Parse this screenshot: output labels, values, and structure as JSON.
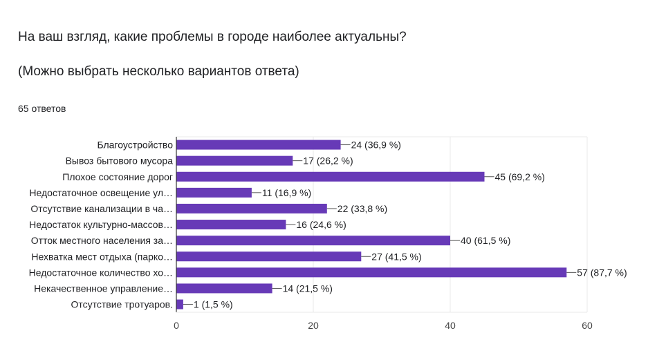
{
  "question": {
    "title": "На ваш взгляд, какие проблемы в городе наиболее актуальны?",
    "subtitle": "(Можно выбрать несколько вариантов ответа)",
    "responses": "65 ответов"
  },
  "colors": {
    "bar": "#673ab7",
    "grid": "#e8e8e8",
    "axis": "#333333",
    "text": "#202124"
  },
  "chart_data": {
    "type": "bar",
    "orientation": "horizontal",
    "categories": [
      "Благоустройство",
      "Вывоз бытового мусора",
      "Плохое состояние дорог",
      "Недостаточное освещение ул…",
      "Отсутствие канализации в ча…",
      "Недостаток культурно-массов…",
      "Отток местного населения за…",
      "Нехватка мест отдыха (парко…",
      "Недостаточное количество хо…",
      "Некачественное управление…",
      "Отсутствие тротуаров."
    ],
    "values": [
      24,
      17,
      45,
      11,
      22,
      16,
      40,
      27,
      57,
      14,
      1
    ],
    "value_labels": [
      "24 (36,9 %)",
      "17 (26,2 %)",
      "45 (69,2 %)",
      "11 (16,9 %)",
      "22 (33,8 %)",
      "16 (24,6 %)",
      "40 (61,5 %)",
      "27 (41,5 %)",
      "57 (87,7 %)",
      "14 (21,5 %)",
      "1 (1,5 %)"
    ],
    "xlim": [
      0,
      60
    ],
    "xticks": [
      0,
      20,
      40,
      60
    ],
    "grid": true,
    "title": "",
    "xlabel": "",
    "ylabel": ""
  }
}
